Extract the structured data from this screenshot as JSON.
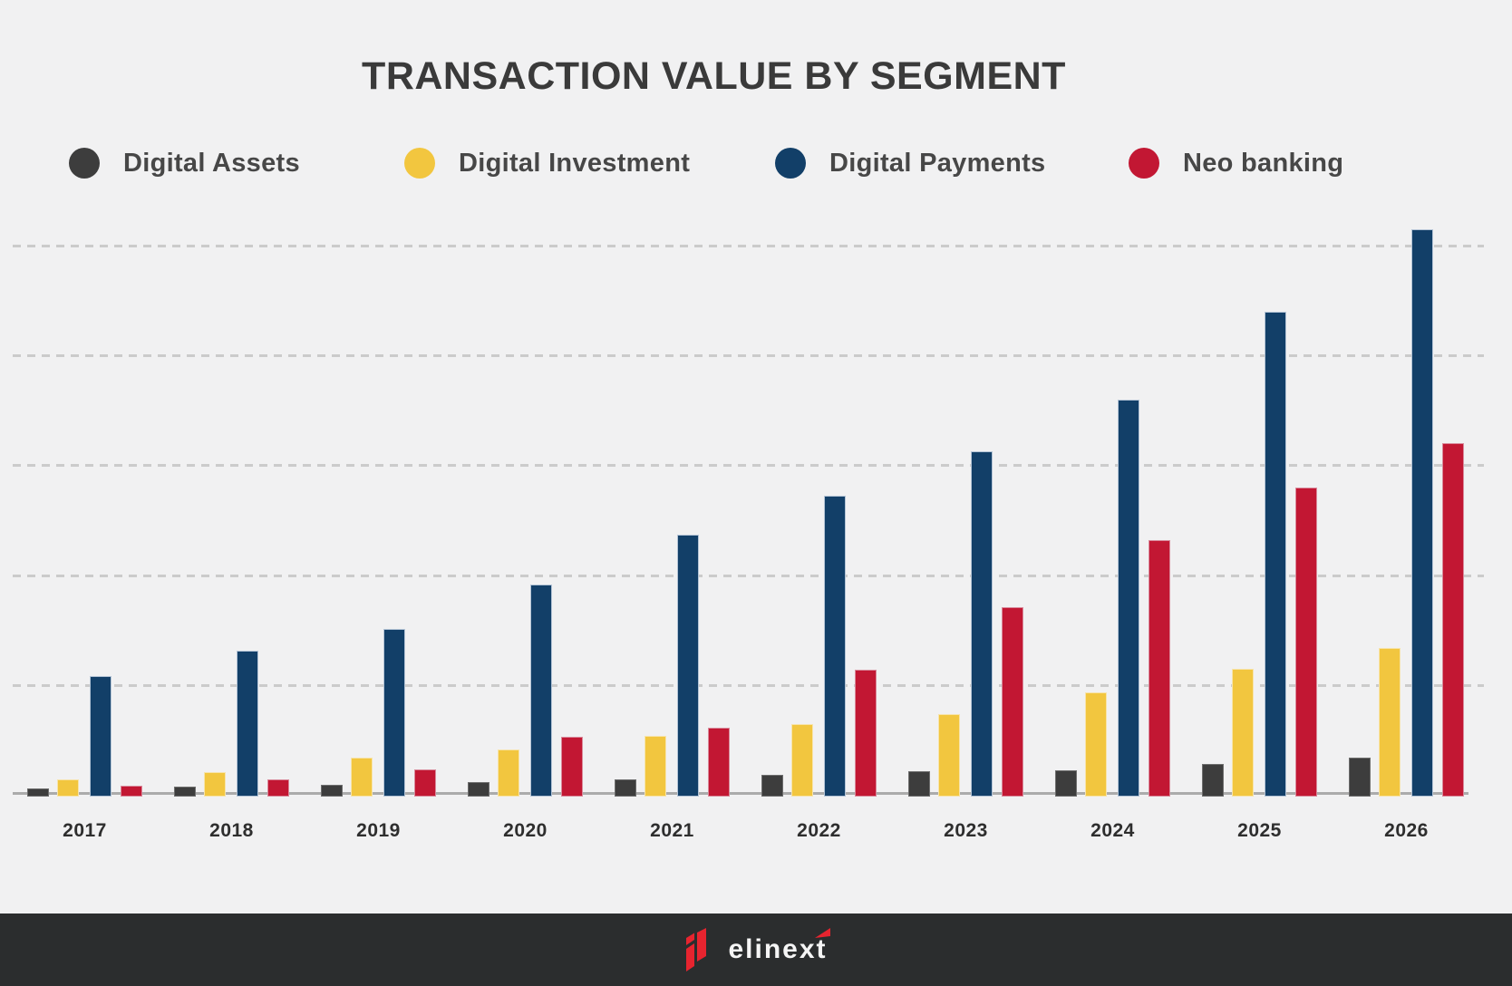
{
  "title": "TRANSACTION VALUE BY SEGMENT",
  "legend": {
    "items": [
      {
        "label": "Digital Assets",
        "color": "#3d3d3d"
      },
      {
        "label": "Digital Investment",
        "color": "#f2c63f"
      },
      {
        "label": "Digital Payments",
        "color": "#123f68"
      },
      {
        "label": "Neo banking",
        "color": "#c21733"
      }
    ]
  },
  "chart_data": {
    "type": "bar",
    "title": "TRANSACTION VALUE BY SEGMENT",
    "categories": [
      "2017",
      "2018",
      "2019",
      "2020",
      "2021",
      "2022",
      "2023",
      "2024",
      "2025",
      "2026"
    ],
    "series": [
      {
        "name": "Digital Assets",
        "color": "#3d3d3d",
        "edge": "#6e6e6e",
        "values": [
          60,
          75,
          90,
          115,
          140,
          185,
          215,
          225,
          285,
          335
        ]
      },
      {
        "name": "Digital Investment",
        "color": "#f2c63f",
        "edge": "#f7e4ab",
        "values": [
          140,
          210,
          335,
          415,
          540,
          640,
          735,
          935,
          1150,
          1335
        ]
      },
      {
        "name": "Digital Payments",
        "color": "#123f68",
        "edge": "#b4c4d6",
        "values": [
          1085,
          1310,
          1510,
          1915,
          2365,
          2725,
          3125,
          3600,
          4400,
          5150
        ]
      },
      {
        "name": "Neo banking",
        "color": "#c21733",
        "edge": "#d98a9b",
        "values": [
          85,
          140,
          235,
          525,
          615,
          1140,
          1710,
          2315,
          2800,
          3200
        ]
      }
    ],
    "ylim": [
      0,
      5400
    ],
    "gridline_values": [
      1000,
      2000,
      3000,
      4000,
      5000
    ],
    "grid": "horizontal dashed gridlines, no numeric axis labels shown",
    "xlabel": "",
    "ylabel": "",
    "legend_position": "top",
    "note": "Chart shows no numeric axis labels; values are estimates in relative units where one gridline interval = 1000."
  },
  "footer": {
    "brand": "elinext"
  }
}
